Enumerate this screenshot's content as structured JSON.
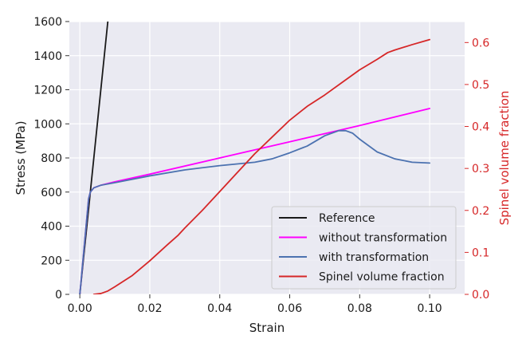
{
  "chart_data": {
    "type": "line",
    "title": "",
    "xlabel": "Strain",
    "ylabel": "Stress (MPa)",
    "y2label": "Spinel volume fraction",
    "xlim": [
      -0.003,
      0.11
    ],
    "ylim": [
      0,
      1600
    ],
    "y2lim": [
      0,
      0.65
    ],
    "x_ticks": [
      0.0,
      0.02,
      0.04,
      0.06,
      0.08,
      0.1
    ],
    "x_tick_labels": [
      "0.00",
      "0.02",
      "0.04",
      "0.06",
      "0.08",
      "0.10"
    ],
    "y_ticks": [
      0,
      200,
      400,
      600,
      800,
      1000,
      1200,
      1400,
      1600
    ],
    "y_tick_labels": [
      "0",
      "200",
      "400",
      "600",
      "800",
      "1000",
      "1200",
      "1400",
      "1600"
    ],
    "y2_ticks": [
      0.0,
      0.1,
      0.2,
      0.3,
      0.4,
      0.5,
      0.6
    ],
    "y2_tick_labels": [
      "0.0",
      "0.1",
      "0.2",
      "0.3",
      "0.4",
      "0.5",
      "0.6"
    ],
    "grid": true,
    "legend_position": "bottom-right",
    "colors": {
      "plot_background": "#eaeaf2",
      "grid": "#ffffff",
      "secondary_axis": "#d62728"
    },
    "series": [
      {
        "name": "Reference",
        "axis": "left",
        "color": "#1a1a1a",
        "x": [
          0.0,
          0.008
        ],
        "y": [
          0,
          1600
        ]
      },
      {
        "name": "without transformation",
        "axis": "left",
        "color": "#ff00ff",
        "x": [
          0.0,
          0.0025,
          0.003,
          0.004,
          0.006,
          0.01,
          0.02,
          0.04,
          0.06,
          0.08,
          0.1
        ],
        "y": [
          0,
          560,
          600,
          625,
          640,
          660,
          705,
          800,
          895,
          990,
          1090
        ]
      },
      {
        "name": "with transformation",
        "axis": "left",
        "color": "#4c72b0",
        "x": [
          0.0,
          0.0025,
          0.003,
          0.004,
          0.006,
          0.01,
          0.02,
          0.03,
          0.04,
          0.05,
          0.055,
          0.06,
          0.065,
          0.07,
          0.074,
          0.076,
          0.078,
          0.08,
          0.085,
          0.09,
          0.095,
          0.1
        ],
        "y": [
          0,
          560,
          600,
          625,
          640,
          655,
          695,
          730,
          755,
          775,
          795,
          830,
          870,
          930,
          960,
          960,
          945,
          910,
          835,
          795,
          775,
          770
        ]
      },
      {
        "name": "Spinel volume fraction",
        "axis": "right",
        "color": "#d62728",
        "x": [
          0.004,
          0.006,
          0.008,
          0.01,
          0.015,
          0.02,
          0.025,
          0.028,
          0.03,
          0.035,
          0.04,
          0.045,
          0.05,
          0.055,
          0.06,
          0.065,
          0.07,
          0.075,
          0.08,
          0.085,
          0.088,
          0.09,
          0.095,
          0.1
        ],
        "y": [
          0.0,
          0.002,
          0.008,
          0.018,
          0.045,
          0.08,
          0.118,
          0.14,
          0.158,
          0.2,
          0.245,
          0.29,
          0.335,
          0.375,
          0.415,
          0.448,
          0.475,
          0.505,
          0.535,
          0.56,
          0.576,
          0.582,
          0.595,
          0.607
        ]
      }
    ]
  }
}
